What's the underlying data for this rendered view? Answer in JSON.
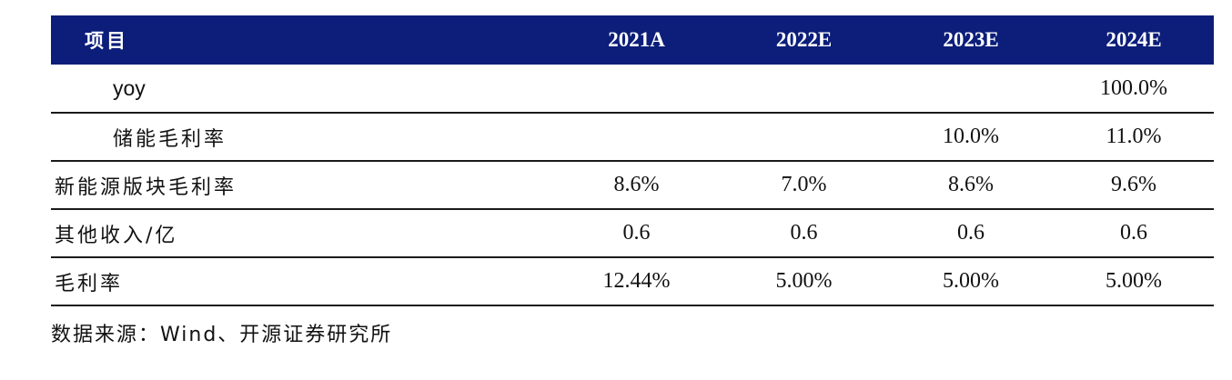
{
  "table": {
    "header": {
      "label": "项目",
      "years": [
        "2021A",
        "2022E",
        "2023E",
        "2024E"
      ]
    },
    "rows": [
      {
        "label": "yoy",
        "values": [
          "",
          "",
          "",
          "100.0%"
        ]
      },
      {
        "label": "储能毛利率",
        "values": [
          "",
          "",
          "10.0%",
          "11.0%"
        ]
      },
      {
        "label": "新能源版块毛利率",
        "values": [
          "8.6%",
          "7.0%",
          "8.6%",
          "9.6%"
        ]
      },
      {
        "label": "其他收入/亿",
        "values": [
          "0.6",
          "0.6",
          "0.6",
          "0.6"
        ]
      },
      {
        "label": "毛利率",
        "values": [
          "12.44%",
          "5.00%",
          "5.00%",
          "5.00%"
        ]
      }
    ]
  },
  "source_note": "数据来源：Wind、开源证券研究所",
  "colors": {
    "header_bg": "#0c1e7a",
    "header_text": "#ffffff",
    "rule": "#1a1a1a"
  }
}
